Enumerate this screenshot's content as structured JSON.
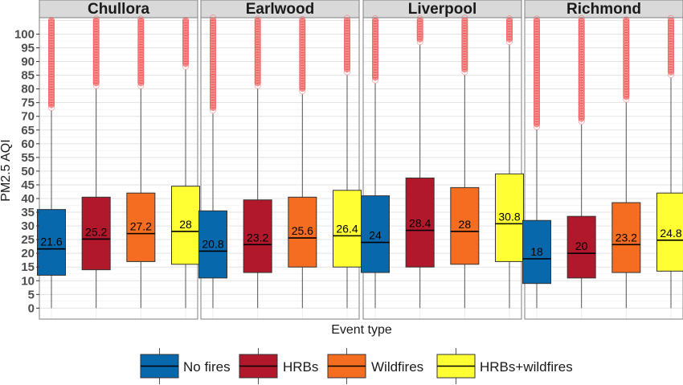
{
  "chart_data": {
    "type": "boxplot",
    "panels": [
      "Chullora",
      "Earlwood",
      "Liverpool",
      "Richmond"
    ],
    "categories": [
      "No fires",
      "HRBs",
      "Wildfires",
      "HRBs+wildfires"
    ],
    "colors": [
      "#0868ac",
      "#b2182b",
      "#f46d20",
      "#ffff33"
    ],
    "outlier_color": "#f03b3b",
    "ylabel": "PM2.5 AQI",
    "xlabel": "Event type",
    "ylim": [
      -4,
      106
    ],
    "yticks": [
      0,
      5,
      10,
      15,
      20,
      25,
      30,
      35,
      40,
      45,
      50,
      55,
      60,
      65,
      70,
      75,
      80,
      85,
      90,
      95,
      100
    ],
    "ytick_labels": [
      "0",
      "5",
      "10",
      "15",
      "20",
      "25",
      "30",
      "35",
      "40",
      "45",
      "50",
      "55",
      "60",
      "65",
      "70",
      "75",
      "80",
      "85",
      "90",
      "95",
      "100"
    ],
    "grid": true,
    "legend_position": "bottom",
    "series": [
      {
        "panel": "Chullora",
        "boxes": [
          {
            "category": "No fires",
            "whisker_low": 0,
            "q1": 12,
            "median": 21.6,
            "q3": 36,
            "whisker_high": 72,
            "median_label": "21.6"
          },
          {
            "category": "HRBs",
            "whisker_low": 0,
            "q1": 14,
            "median": 25.2,
            "q3": 40.5,
            "whisker_high": 80,
            "median_label": "25.2"
          },
          {
            "category": "Wildfires",
            "whisker_low": 0,
            "q1": 17,
            "median": 27.2,
            "q3": 42,
            "whisker_high": 80,
            "median_label": "27.2"
          },
          {
            "category": "HRBs+wildfires",
            "whisker_low": 0,
            "q1": 16,
            "median": 28,
            "q3": 44.5,
            "whisker_high": 87,
            "median_label": "28"
          }
        ]
      },
      {
        "panel": "Earlwood",
        "boxes": [
          {
            "category": "No fires",
            "whisker_low": 0,
            "q1": 11,
            "median": 20.8,
            "q3": 35.5,
            "whisker_high": 71,
            "median_label": "20.8"
          },
          {
            "category": "HRBs",
            "whisker_low": 0,
            "q1": 13,
            "median": 23.2,
            "q3": 39.5,
            "whisker_high": 80,
            "median_label": "23.2"
          },
          {
            "category": "Wildfires",
            "whisker_low": 0,
            "q1": 15,
            "median": 25.6,
            "q3": 40.5,
            "whisker_high": 78,
            "median_label": "25.6"
          },
          {
            "category": "HRBs+wildfires",
            "whisker_low": 0,
            "q1": 15,
            "median": 26.4,
            "q3": 43,
            "whisker_high": 85,
            "median_label": "26.4"
          }
        ]
      },
      {
        "panel": "Liverpool",
        "boxes": [
          {
            "category": "No fires",
            "whisker_low": 0,
            "q1": 13,
            "median": 24,
            "q3": 41,
            "whisker_high": 82,
            "median_label": "24"
          },
          {
            "category": "HRBs",
            "whisker_low": 0,
            "q1": 15,
            "median": 28.4,
            "q3": 47.5,
            "whisker_high": 96,
            "median_label": "28.4"
          },
          {
            "category": "Wildfires",
            "whisker_low": 0,
            "q1": 16,
            "median": 28,
            "q3": 44,
            "whisker_high": 85,
            "median_label": "28"
          },
          {
            "category": "HRBs+wildfires",
            "whisker_low": 0,
            "q1": 17,
            "median": 30.8,
            "q3": 49,
            "whisker_high": 96,
            "median_label": "30.8"
          }
        ]
      },
      {
        "panel": "Richmond",
        "boxes": [
          {
            "category": "No fires",
            "whisker_low": 0,
            "q1": 9,
            "median": 18,
            "q3": 32,
            "whisker_high": 65,
            "median_label": "18"
          },
          {
            "category": "HRBs",
            "whisker_low": 0,
            "q1": 11,
            "median": 20,
            "q3": 33.5,
            "whisker_high": 67,
            "median_label": "20"
          },
          {
            "category": "Wildfires",
            "whisker_low": 0,
            "q1": 13,
            "median": 23.2,
            "q3": 38.5,
            "whisker_high": 75,
            "median_label": "23.2"
          },
          {
            "category": "HRBs+wildfires",
            "whisker_low": 0,
            "q1": 13.5,
            "median": 24.8,
            "q3": 42,
            "whisker_high": 84,
            "median_label": "24.8"
          }
        ]
      }
    ],
    "outlier_range_max": 106
  }
}
